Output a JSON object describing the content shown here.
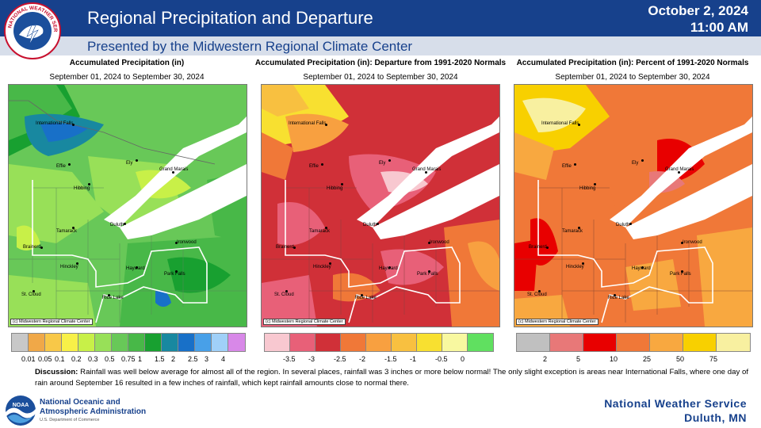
{
  "header": {
    "title": "Regional Precipitation and Departure",
    "date_line1": "October 2, 2024",
    "date_line2": "11:00 AM",
    "subtitle": "Presented by the Midwestern Regional Climate Center",
    "logo_text": "NATIONAL WEATHER SERVICE"
  },
  "panels": [
    {
      "title": "Accumulated Precipitation (in)",
      "date_range": "September 01, 2024 to September 30, 2024",
      "credit": "(c) Midwestern Regional Climate Center",
      "legend": {
        "colors": [
          "#c8c8c8",
          "#f0a848",
          "#f8c848",
          "#f8f048",
          "#c8f048",
          "#98e058",
          "#68c858",
          "#48b848",
          "#18a030",
          "#1888a0",
          "#1870c8",
          "#48a0e8",
          "#a0d0f8",
          "#d888e8"
        ],
        "labels": [
          "0.01",
          "0.05",
          "0.1",
          "0.2",
          "0.3",
          "0.5",
          "0.75",
          "1",
          "1.5",
          "2",
          "2.5",
          "3",
          "4"
        ]
      }
    },
    {
      "title": "Accumulated Precipitation (in): Departure from 1991-2020 Normals",
      "date_range": "September 01, 2024 to September 30, 2024",
      "credit": "(c) Midwestern Regional Climate Center",
      "legend": {
        "colors": [
          "#f8c8d0",
          "#e86078",
          "#d03038",
          "#f07838",
          "#f8a040",
          "#f8c040",
          "#f8e030",
          "#f8f8a0",
          "#60e060"
        ],
        "labels": [
          "-3.5",
          "-3",
          "-2.5",
          "-2",
          "-1.5",
          "-1",
          "-0.5",
          "0"
        ]
      }
    },
    {
      "title": "Accumulated Precipitation (in): Percent of 1991-2020 Normals",
      "date_range": "September 01, 2024 to September 30, 2024",
      "credit": "(c) Midwestern Regional Climate Center",
      "legend": {
        "colors": [
          "#c0c0c0",
          "#e87878",
          "#e80000",
          "#f07838",
          "#f8a840",
          "#f8d000",
          "#f8f0a0"
        ],
        "labels": [
          "2",
          "5",
          "10",
          "25",
          "50",
          "75"
        ]
      }
    }
  ],
  "cities": {
    "international_falls": "International Falls",
    "effie": "Effie",
    "ely": "Ely",
    "grand_marais": "Grand Marais",
    "hibbing": "Hibbing",
    "tamarack": "Tamarack",
    "duluth": "Duluth",
    "brainerd": "Brainerd",
    "ironwood": "Ironwood",
    "hinckley": "Hinckley",
    "hayward": "Hayward",
    "park_falls": "Park Falls",
    "st_cloud": "St. Cloud",
    "rice_lake": "Rice Lake"
  },
  "discussion": {
    "label": "Discussion:",
    "text": " Rainfall was well below average for almost all of the region. In several places, rainfall was 3 inches or more below normal! The only slight exception is areas near International Falls, where one day of rain around September 16 resulted in a few inches of rainfall, which kept rainfall amounts close to normal there."
  },
  "footer": {
    "noaa_line1": "National Oceanic and",
    "noaa_line2": "Atmospheric Administration",
    "noaa_sub": "U.S. Department of Commerce",
    "noaa_logo": "NOAA",
    "nws_line1": "National Weather Service",
    "nws_line2": "Duluth, MN"
  }
}
